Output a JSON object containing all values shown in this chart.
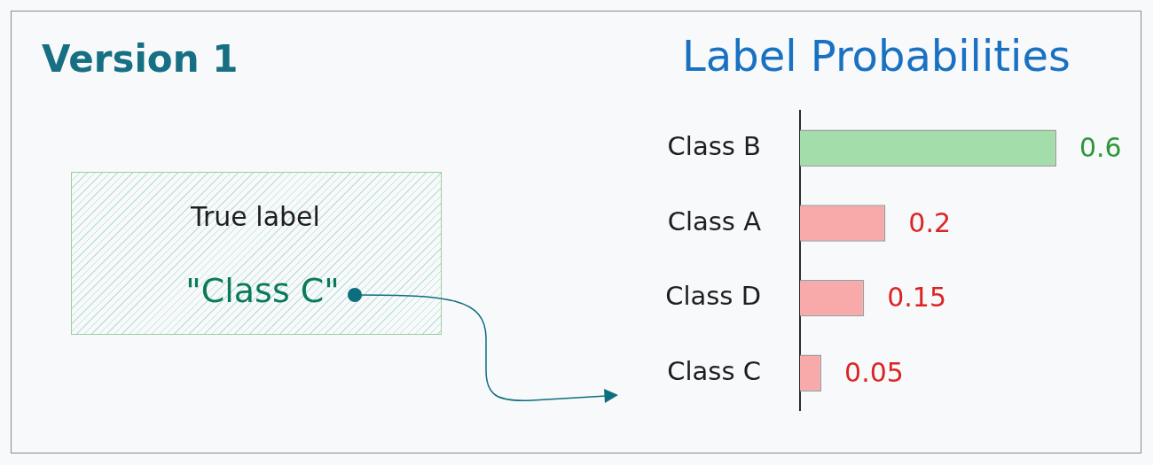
{
  "chart_data": {
    "type": "bar",
    "orientation": "horizontal",
    "title": "Label Probabilities",
    "categories": [
      "Class B",
      "Class A",
      "Class D",
      "Class C"
    ],
    "values": [
      0.6,
      0.2,
      0.15,
      0.05
    ],
    "colors": [
      "#a3deaa",
      "#f8a9a9",
      "#f8a9a9",
      "#f8a9a9"
    ],
    "data_labels": true,
    "tick_labels": "y",
    "annotations": [
      "Version 1",
      "True label",
      "\"Class C\""
    ]
  }
}
